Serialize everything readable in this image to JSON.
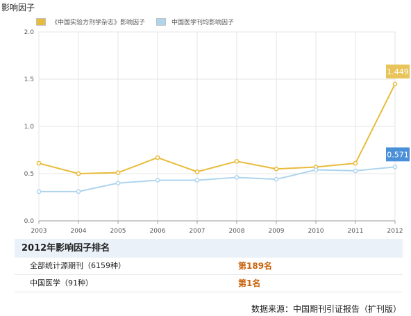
{
  "page_title": "影响因子",
  "chart_data": {
    "type": "line",
    "x": [
      "2003",
      "2004",
      "2005",
      "2006",
      "2007",
      "2008",
      "2009",
      "2010",
      "2011",
      "2012"
    ],
    "series": [
      {
        "name": "《中国实验方剂学杂志》影响因子",
        "color": "#e8bb3a",
        "values": [
          0.61,
          0.5,
          0.51,
          0.67,
          0.52,
          0.63,
          0.55,
          0.57,
          0.61,
          1.449
        ]
      },
      {
        "name": "中国医学刊均影响因子",
        "color": "#aed5ee",
        "values": [
          0.31,
          0.31,
          0.4,
          0.43,
          0.43,
          0.46,
          0.44,
          0.54,
          0.53,
          0.571
        ]
      }
    ],
    "end_labels": [
      "1.449",
      "0.571"
    ],
    "end_label_colors": [
      "#e8c45a",
      "#4a90d9"
    ],
    "y_ticks": [
      "0.0",
      "0.5",
      "1.0",
      "1.5",
      "2.0"
    ],
    "ylim": [
      0,
      2.0
    ],
    "grid": true,
    "legend_position": "top-left"
  },
  "ranking": {
    "header": "2012年影响因子排名",
    "rows": [
      {
        "label": "全部统计源期刊（6159种）",
        "value": "第189名"
      },
      {
        "label": "中国医学（91种）",
        "value": "第1名"
      }
    ]
  },
  "source": "数据来源：中国期刊引证报告（扩刊版）"
}
